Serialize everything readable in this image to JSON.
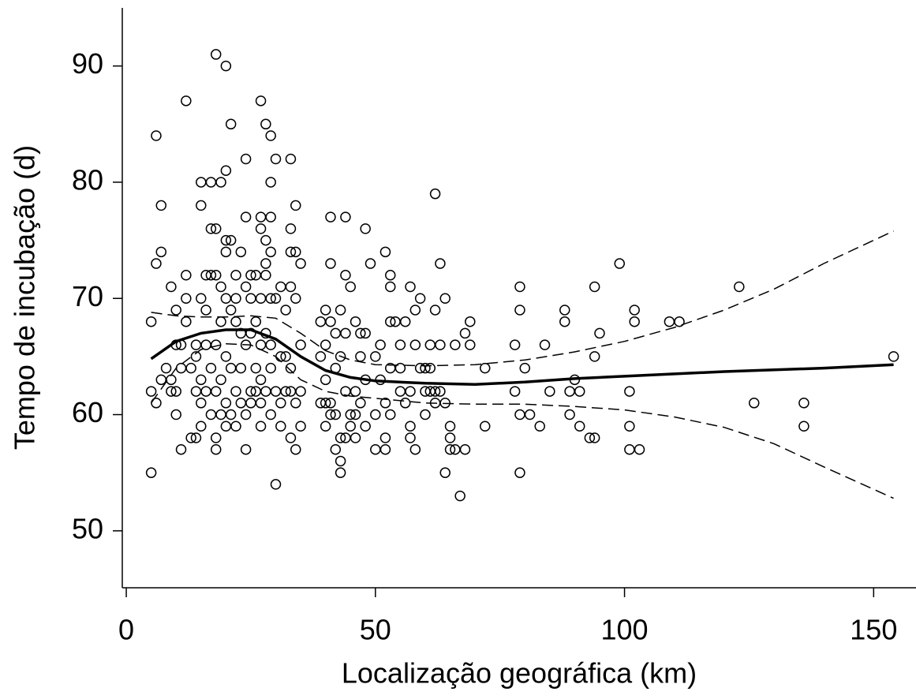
{
  "chart_data": {
    "type": "scatter",
    "xlabel": "Localização geográfica (km)",
    "ylabel": "Tempo de incubação (d)",
    "xlim": [
      -0.8,
      158.5
    ],
    "ylim": [
      45.1,
      95.0
    ],
    "xticks": [
      0,
      50,
      100,
      150
    ],
    "yticks": [
      50,
      60,
      70,
      80,
      90
    ],
    "color": "#000000",
    "series": [
      {
        "style": "points",
        "x": [
          5,
          5,
          5,
          6,
          6,
          6,
          7,
          7,
          7,
          8,
          9,
          9,
          9,
          10,
          10,
          10,
          10,
          11,
          11,
          11,
          12,
          12,
          12,
          12,
          13,
          13,
          14,
          14,
          14,
          14,
          15,
          15,
          15,
          15,
          15,
          15,
          16,
          16,
          16,
          16,
          17,
          17,
          17,
          17,
          17,
          18,
          18,
          18,
          18,
          18,
          18,
          18,
          19,
          19,
          19,
          19,
          19,
          20,
          20,
          20,
          20,
          20,
          20,
          20,
          20,
          21,
          21,
          21,
          21,
          21,
          22,
          22,
          22,
          22,
          22,
          23,
          23,
          23,
          23,
          24,
          24,
          24,
          24,
          24,
          24,
          25,
          25,
          25,
          25,
          25,
          26,
          26,
          26,
          26,
          27,
          27,
          27,
          27,
          27,
          27,
          27,
          27,
          28,
          28,
          28,
          28,
          28,
          28,
          29,
          29,
          29,
          29,
          29,
          29,
          29,
          29,
          30,
          30,
          30,
          30,
          31,
          31,
          31,
          31,
          32,
          32,
          32,
          33,
          33,
          33,
          33,
          33,
          33,
          33,
          34,
          34,
          34,
          34,
          34,
          35,
          35,
          35,
          35,
          39,
          39,
          39,
          40,
          40,
          40,
          40,
          40,
          41,
          41,
          41,
          41,
          41,
          42,
          42,
          42,
          42,
          43,
          43,
          43,
          43,
          43,
          44,
          44,
          44,
          44,
          44,
          45,
          45,
          45,
          46,
          46,
          46,
          46,
          47,
          47,
          47,
          48,
          48,
          48,
          48,
          49,
          50,
          50,
          50,
          51,
          51,
          52,
          52,
          52,
          52,
          53,
          53,
          53,
          53,
          53,
          54,
          55,
          55,
          55,
          56,
          56,
          57,
          57,
          57,
          57,
          58,
          58,
          58,
          59,
          59,
          60,
          60,
          60,
          61,
          61,
          61,
          62,
          62,
          62,
          62,
          63,
          63,
          63,
          64,
          64,
          64,
          65,
          65,
          65,
          66,
          66,
          67,
          68,
          68,
          69,
          69,
          72,
          72,
          78,
          78,
          79,
          79,
          79,
          79,
          80,
          81,
          83,
          84,
          85,
          88,
          88,
          89,
          89,
          90,
          91,
          91,
          93,
          94,
          94,
          94,
          95,
          99,
          101,
          101,
          101,
          102,
          102,
          103,
          109,
          111,
          123,
          126,
          136,
          136,
          154
        ],
        "values": [
          55,
          62,
          68,
          61,
          73,
          84,
          78,
          74,
          63,
          64,
          71,
          62,
          63,
          60,
          62,
          66,
          69,
          57,
          64,
          66,
          87,
          72,
          70,
          68,
          64,
          58,
          58,
          62,
          65,
          66,
          80,
          78,
          70,
          63,
          61,
          59,
          69,
          66,
          62,
          72,
          76,
          80,
          72,
          64,
          60,
          91,
          76,
          72,
          66,
          62,
          58,
          57,
          80,
          71,
          68,
          63,
          60,
          90,
          81,
          75,
          74,
          70,
          65,
          61,
          59,
          85,
          75,
          69,
          64,
          60,
          72,
          70,
          68,
          62,
          59,
          74,
          67,
          64,
          61,
          82,
          77,
          71,
          66,
          60,
          57,
          72,
          70,
          67,
          62,
          61,
          72,
          68,
          64,
          62,
          87,
          77,
          76,
          70,
          66,
          63,
          61,
          59,
          85,
          75,
          73,
          72,
          67,
          62,
          84,
          80,
          77,
          74,
          70,
          66,
          64,
          60,
          82,
          70,
          62,
          54,
          71,
          65,
          61,
          59,
          69,
          65,
          62,
          82,
          76,
          74,
          71,
          64,
          62,
          58,
          78,
          74,
          70,
          61,
          57,
          73,
          66,
          62,
          59,
          68,
          65,
          61,
          69,
          66,
          63,
          61,
          59,
          77,
          73,
          68,
          61,
          60,
          67,
          64,
          60,
          57,
          69,
          65,
          58,
          56,
          55,
          77,
          72,
          67,
          62,
          58,
          71,
          60,
          59,
          68,
          62,
          60,
          58,
          67,
          65,
          61,
          76,
          67,
          63,
          59,
          73,
          65,
          60,
          57,
          66,
          63,
          74,
          61,
          58,
          57,
          72,
          71,
          68,
          64,
          60,
          68,
          66,
          64,
          62,
          68,
          61,
          71,
          62,
          58,
          59,
          69,
          66,
          57,
          70,
          64,
          64,
          62,
          60,
          66,
          64,
          62,
          79,
          69,
          62,
          61,
          73,
          66,
          62,
          70,
          61,
          55,
          59,
          58,
          57,
          66,
          57,
          53,
          57,
          67,
          68,
          66,
          64,
          59,
          66,
          62,
          71,
          69,
          60,
          55,
          64,
          60,
          59,
          66,
          62,
          69,
          68,
          62,
          60,
          63,
          62,
          59,
          58,
          71,
          65,
          58,
          67,
          73,
          62,
          59,
          57,
          69,
          68,
          57,
          68,
          68,
          71,
          61,
          61,
          59,
          65
        ]
      },
      {
        "style": "solid",
        "x": [
          5,
          10,
          15,
          20,
          25,
          30,
          35,
          40,
          45,
          50,
          60,
          70,
          80,
          90,
          100,
          120,
          140,
          154
        ],
        "values": [
          64.8,
          66.3,
          67,
          67.3,
          67.3,
          66.5,
          65,
          63.8,
          63.2,
          62.9,
          62.7,
          62.6,
          62.8,
          63.1,
          63.3,
          63.7,
          64,
          64.3
        ]
      },
      {
        "style": "dashed",
        "x": [
          5,
          10,
          15,
          20,
          25,
          30,
          35,
          40,
          45,
          50,
          60,
          70,
          80,
          90,
          100,
          110,
          120,
          130,
          140,
          154
        ],
        "values": [
          68.8,
          68.5,
          68.4,
          68.4,
          68.5,
          68.3,
          67,
          65.5,
          64.7,
          64.3,
          64.2,
          64.3,
          64.7,
          65.4,
          66.3,
          67.5,
          69,
          70.8,
          73,
          75.8
        ]
      },
      {
        "style": "dashed",
        "x": [
          5,
          10,
          15,
          20,
          25,
          30,
          35,
          40,
          45,
          50,
          60,
          70,
          80,
          90,
          100,
          110,
          120,
          130,
          140,
          154
        ],
        "values": [
          61,
          64,
          65.6,
          66.1,
          66,
          65,
          63,
          62,
          61.6,
          61.4,
          61,
          60.9,
          60.9,
          60.7,
          60.4,
          59.8,
          58.9,
          57.5,
          55.5,
          52.8
        ]
      }
    ]
  }
}
